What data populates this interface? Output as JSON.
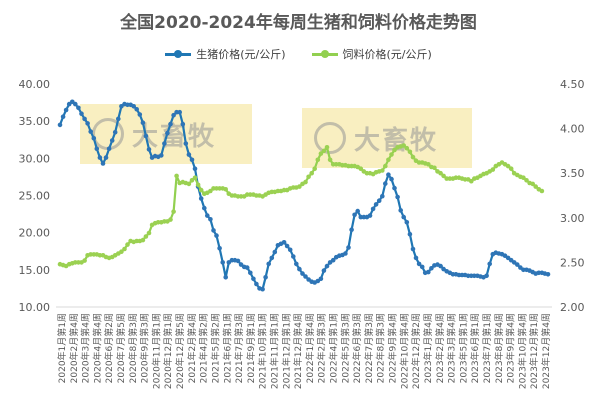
{
  "chart_data": {
    "type": "line",
    "title": "全国2020-2024年每周生猪和饲料价格走势图",
    "left_axis": {
      "min": 10,
      "max": 40,
      "step": 5,
      "decimals": 2
    },
    "right_axis": {
      "min": 2.0,
      "max": 4.5,
      "step": 0.5,
      "decimals": 2
    },
    "legend_position": "top",
    "grid": false,
    "watermark_text": "大畜牧",
    "x_tick_labels": [
      "2020年1月第1周",
      "2020年2月第4周",
      "2020年3月第4周",
      "2020年4月第4周",
      "2020年6月第2周",
      "2020年7月第5周",
      "2020年8月第3周",
      "2020年9月第3周",
      "2020年11月第1周",
      "2020年12月第1周",
      "2020年12月第5周",
      "2021年2月第4周",
      "2021年4月第2周",
      "2021年5月第2周",
      "2021年6月第1周",
      "2021年7月第3周",
      "2021年9月第1周",
      "2021年10月第1周",
      "2021年11月第1周",
      "2021年12月第1周",
      "2021年12月第4周",
      "2022年1月第4周",
      "2022年2月第3周",
      "2022年4月第1周",
      "2022年5月第3周",
      "2022年6月第3周",
      "2022年7月第3周",
      "2022年8月第3周",
      "2022年9月第4周",
      "2022年10月第4周",
      "2022年12月第2周",
      "2023年1月第4周",
      "2023年2月第4周",
      "2023年3月第4周",
      "2023年5月第1周",
      "2023年6月第1周",
      "2023年7月第1周",
      "2023年8月第4周",
      "2023年9月第4周",
      "2023年10月第4周",
      "2023年12月第1周",
      "2023年12月第4周"
    ],
    "series": [
      {
        "name": "生猪价格(元/公斤)",
        "axis": "left",
        "color": "#1f77b4",
        "marker_color": "#2e75b6",
        "values": [
          34.5,
          35.6,
          36.5,
          37.3,
          37.6,
          37.3,
          36.8,
          36.0,
          35.3,
          34.7,
          33.6,
          32.7,
          31.3,
          30.1,
          29.3,
          30.1,
          31.3,
          32.4,
          33.5,
          35.3,
          37.0,
          37.3,
          37.2,
          37.2,
          37.0,
          36.6,
          35.9,
          34.8,
          33.0,
          31.2,
          30.1,
          30.3,
          30.2,
          30.4,
          32.0,
          33.4,
          34.6,
          35.8,
          36.2,
          36.2,
          34.6,
          32.0,
          30.5,
          29.8,
          28.6,
          26.2,
          24.6,
          23.3,
          22.3,
          21.8,
          20.3,
          19.6,
          17.9,
          16.0,
          14.0,
          16.0,
          16.3,
          16.3,
          16.2,
          15.7,
          15.4,
          15.3,
          14.6,
          13.8,
          13.1,
          12.5,
          12.4,
          14.0,
          15.8,
          16.6,
          17.4,
          18.3,
          18.5,
          18.7,
          18.2,
          17.7,
          16.8,
          15.8,
          15.1,
          14.5,
          14.1,
          13.7,
          13.4,
          13.3,
          13.5,
          13.8,
          14.9,
          15.5,
          16.0,
          16.3,
          16.7,
          16.9,
          17.0,
          17.2,
          18.0,
          20.4,
          22.4,
          22.9,
          22.1,
          22.1,
          22.1,
          22.3,
          23.2,
          23.8,
          24.3,
          24.9,
          26.6,
          27.8,
          27.2,
          26.0,
          24.8,
          23.0,
          22.1,
          21.4,
          19.8,
          17.8,
          16.6,
          15.8,
          15.4,
          14.6,
          14.7,
          15.2,
          15.6,
          15.7,
          15.5,
          15.1,
          14.8,
          14.6,
          14.4,
          14.4,
          14.3,
          14.3,
          14.3,
          14.2,
          14.2,
          14.2,
          14.2,
          14.1,
          14.0,
          14.2,
          15.8,
          17.1,
          17.3,
          17.2,
          17.1,
          16.9,
          16.6,
          16.3,
          16.0,
          15.7,
          15.3,
          15.0,
          15.0,
          14.9,
          14.7,
          14.5,
          14.6,
          14.6,
          14.5,
          14.4
        ]
      },
      {
        "name": "饲料价格(元/公斤)",
        "axis": "right",
        "color": "#92d050",
        "marker_color": "#9bd152",
        "values": [
          2.48,
          2.47,
          2.46,
          2.48,
          2.49,
          2.5,
          2.5,
          2.5,
          2.52,
          2.58,
          2.59,
          2.59,
          2.59,
          2.58,
          2.58,
          2.56,
          2.55,
          2.56,
          2.58,
          2.6,
          2.62,
          2.65,
          2.7,
          2.74,
          2.73,
          2.74,
          2.74,
          2.75,
          2.79,
          2.83,
          2.92,
          2.94,
          2.95,
          2.95,
          2.96,
          2.96,
          2.98,
          3.07,
          3.47,
          3.39,
          3.4,
          3.39,
          3.38,
          3.42,
          3.45,
          3.37,
          3.31,
          3.27,
          3.28,
          3.3,
          3.33,
          3.33,
          3.33,
          3.33,
          3.32,
          3.27,
          3.25,
          3.25,
          3.24,
          3.24,
          3.24,
          3.26,
          3.26,
          3.26,
          3.25,
          3.25,
          3.24,
          3.26,
          3.28,
          3.29,
          3.29,
          3.3,
          3.3,
          3.31,
          3.31,
          3.33,
          3.34,
          3.34,
          3.35,
          3.38,
          3.4,
          3.46,
          3.5,
          3.55,
          3.65,
          3.72,
          3.75,
          3.79,
          3.65,
          3.6,
          3.6,
          3.6,
          3.59,
          3.59,
          3.58,
          3.58,
          3.58,
          3.57,
          3.55,
          3.52,
          3.5,
          3.5,
          3.49,
          3.51,
          3.52,
          3.53,
          3.58,
          3.65,
          3.71,
          3.76,
          3.79,
          3.8,
          3.81,
          3.78,
          3.74,
          3.68,
          3.64,
          3.62,
          3.62,
          3.61,
          3.6,
          3.57,
          3.56,
          3.52,
          3.5,
          3.47,
          3.44,
          3.44,
          3.44,
          3.45,
          3.45,
          3.44,
          3.43,
          3.43,
          3.41,
          3.44,
          3.45,
          3.47,
          3.49,
          3.5,
          3.52,
          3.54,
          3.58,
          3.6,
          3.62,
          3.6,
          3.58,
          3.55,
          3.5,
          3.48,
          3.46,
          3.45,
          3.42,
          3.39,
          3.38,
          3.35,
          3.32,
          3.3
        ]
      }
    ]
  }
}
